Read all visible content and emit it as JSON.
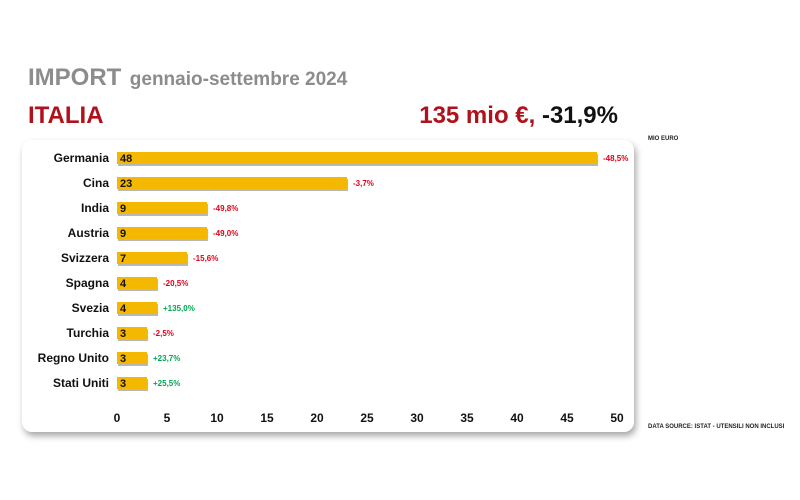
{
  "header": {
    "title": "IMPORT",
    "period": "gennaio-settembre 2024",
    "country": "ITALIA",
    "total": "135 mio €,",
    "total_change": "-31,9%",
    "unit_label": "MIO EURO",
    "source": "DATA SOURCE: ISTAT - UTENSILI NON INCLUSI"
  },
  "colors": {
    "bar": "#f5b800",
    "negative": "#e0001a",
    "positive": "#00a651",
    "title_red": "#b0121b",
    "title_gray": "#8c8c8c"
  },
  "chart_data": {
    "type": "bar",
    "orientation": "horizontal",
    "categories": [
      "Germania",
      "Cina",
      "India",
      "Austria",
      "Svizzera",
      "Spagna",
      "Svezia",
      "Turchia",
      "Regno Unito",
      "Stati Uniti"
    ],
    "values": [
      48,
      23,
      9,
      9,
      7,
      4,
      4,
      3,
      3,
      3
    ],
    "changes": [
      "-48,5%",
      "-3,7%",
      "-49,8%",
      "-49,0%",
      "-15,6%",
      "-20,5%",
      "+135,0%",
      "-2,5%",
      "+23,7%",
      "+25,5%"
    ],
    "xlim": [
      0,
      50
    ],
    "xticks": [
      0,
      5,
      10,
      15,
      20,
      25,
      30,
      35,
      40,
      45,
      50
    ],
    "grid": false,
    "legend": "none"
  }
}
